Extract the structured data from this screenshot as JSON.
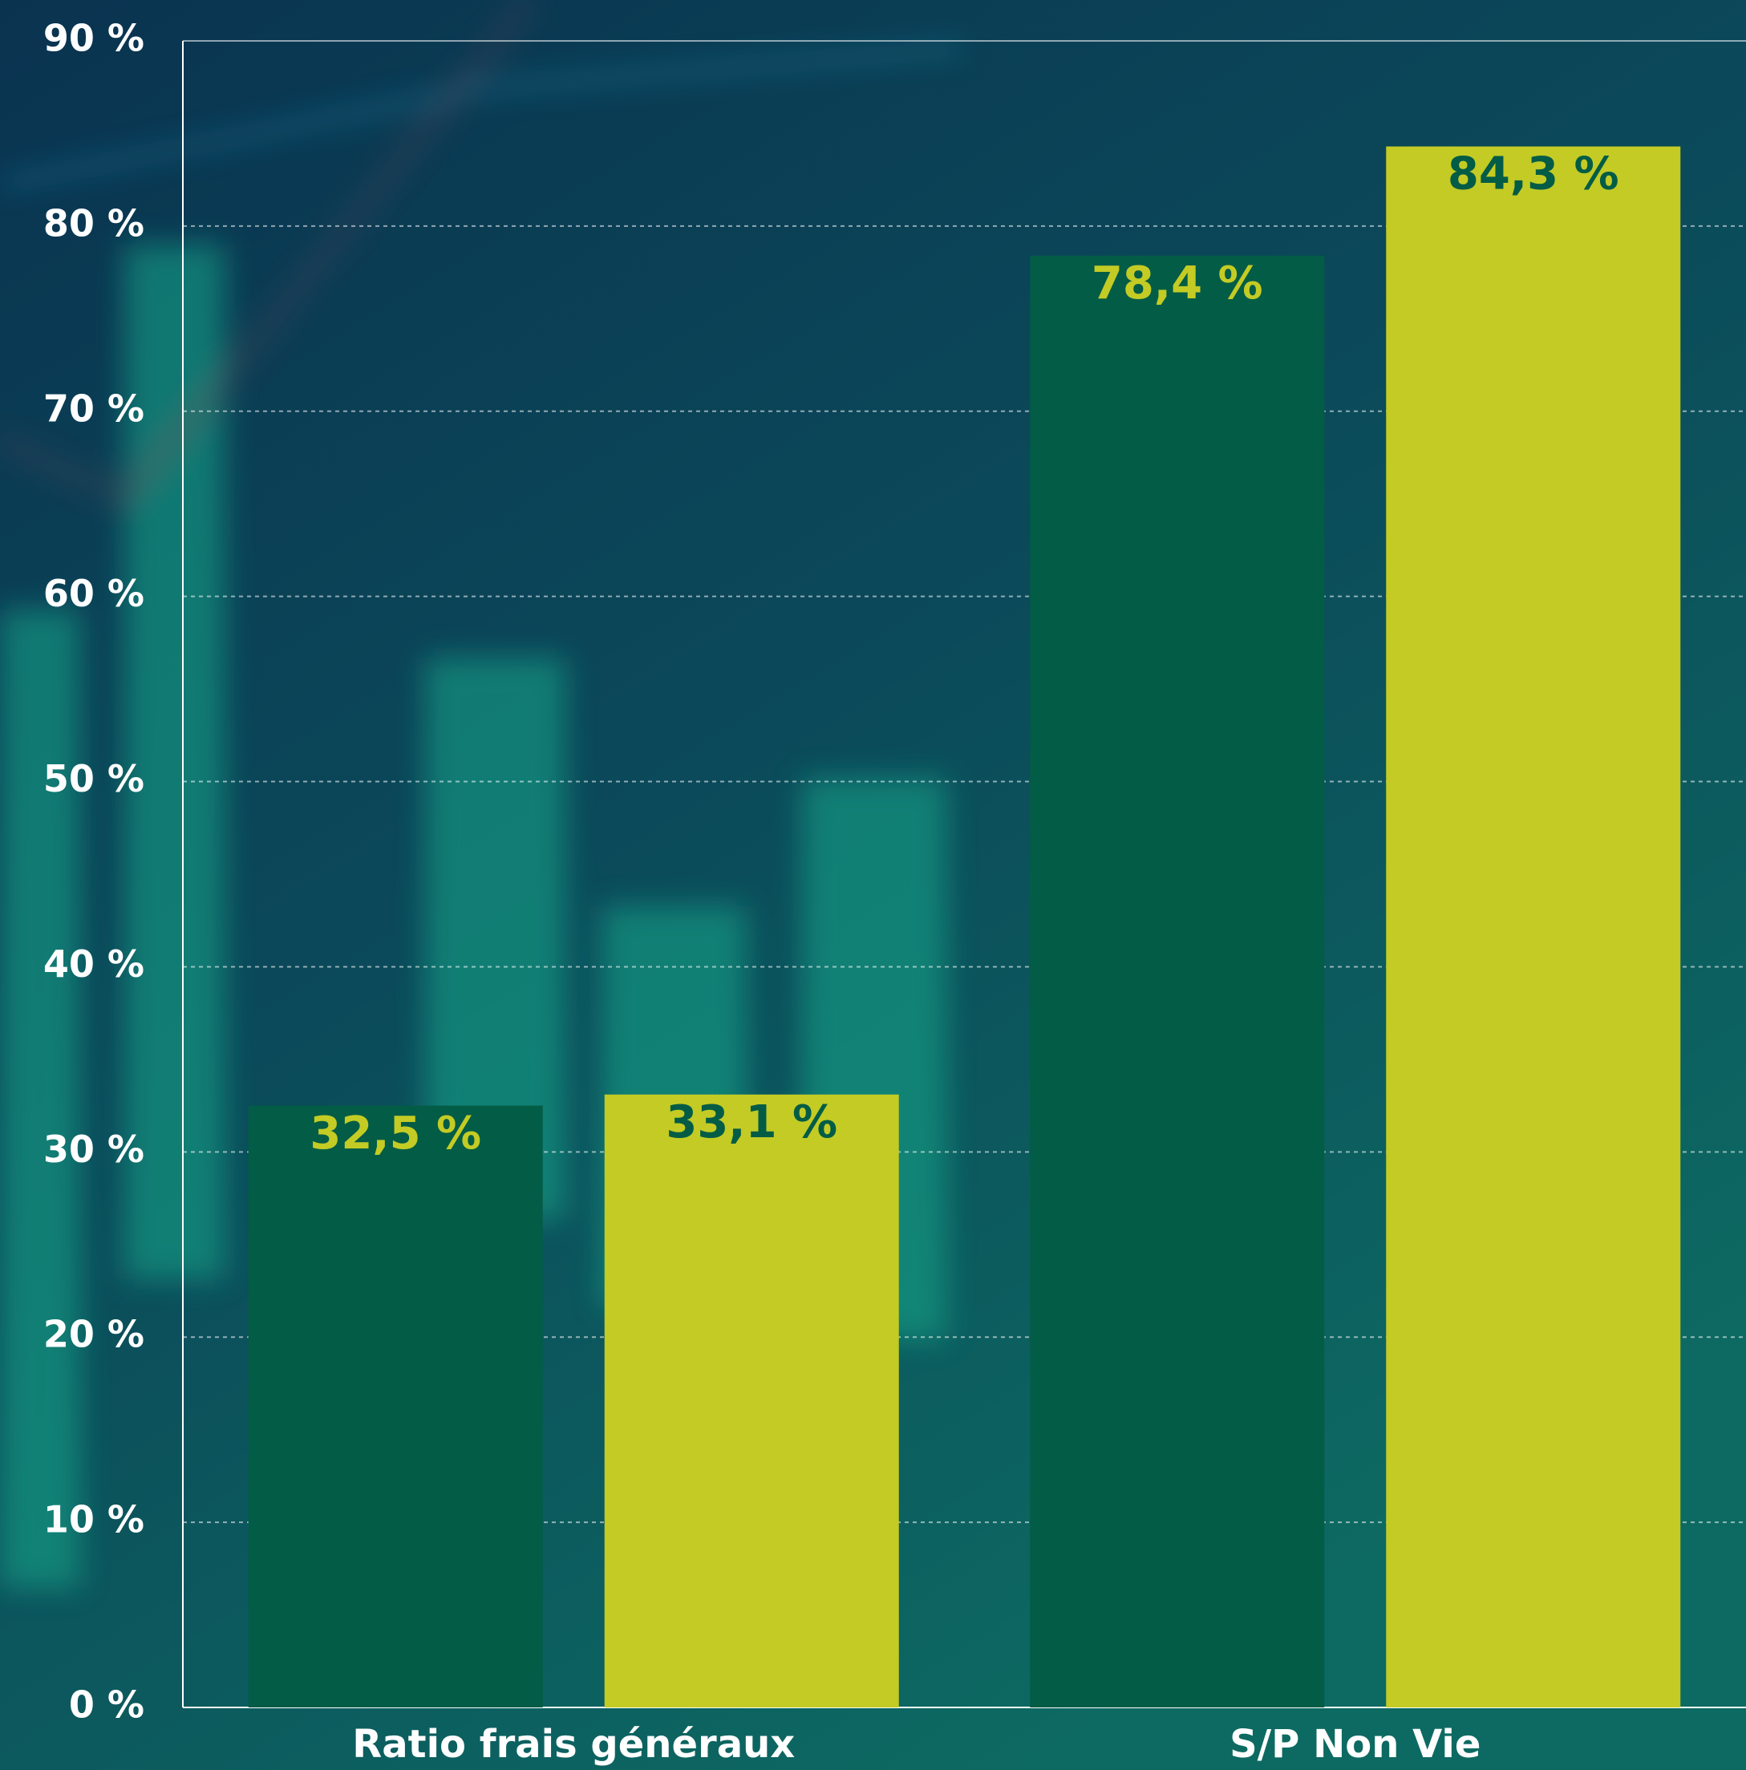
{
  "chart_data": {
    "type": "bar",
    "categories": [
      "Ratio frais généraux",
      "S/P Non Vie"
    ],
    "series": [
      {
        "color": "#035c46",
        "label_color": "#c3cb24",
        "values": [
          32.5,
          78.4
        ],
        "value_labels": [
          "32,5 %",
          "78,4 %"
        ]
      },
      {
        "color": "#c3cb24",
        "label_color": "#035c46",
        "values": [
          33.1,
          84.3
        ],
        "value_labels": [
          "33,1 %",
          "84,3 %"
        ]
      }
    ],
    "ylim": [
      0,
      90
    ],
    "yticks": [
      {
        "value": 0,
        "label": "0 %"
      },
      {
        "value": 10,
        "label": "10 %"
      },
      {
        "value": 20,
        "label": "20 %"
      },
      {
        "value": 30,
        "label": "30 %"
      },
      {
        "value": 40,
        "label": "40 %"
      },
      {
        "value": 50,
        "label": "50 %"
      },
      {
        "value": 60,
        "label": "60 %"
      },
      {
        "value": 70,
        "label": "70 %"
      },
      {
        "value": 80,
        "label": "80 %"
      },
      {
        "value": 90,
        "label": "90 %"
      }
    ],
    "grid": true
  }
}
